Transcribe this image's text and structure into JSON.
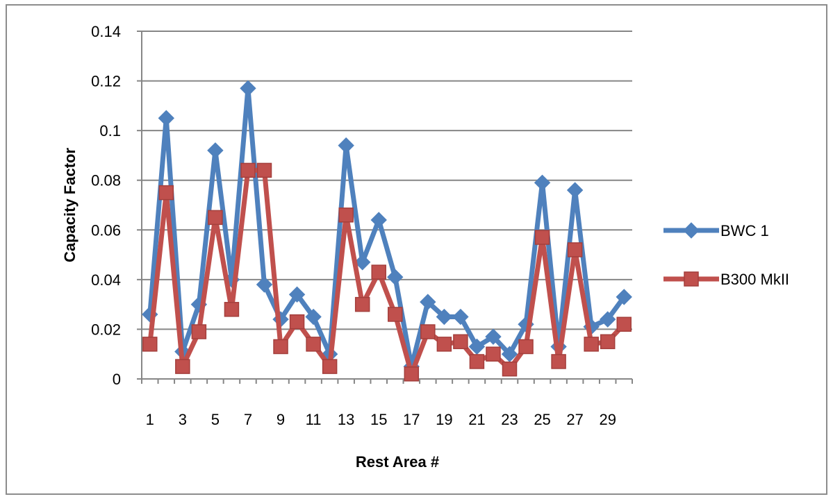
{
  "chart_data": {
    "type": "line",
    "title": "",
    "xlabel": "Rest Area #",
    "ylabel": "Capacity Factor",
    "ylim": [
      0,
      0.14
    ],
    "yticks": [
      "0",
      "0.02",
      "0.04",
      "0.06",
      "0.08",
      "0.1",
      "0.12",
      "0.14"
    ],
    "xticks": [
      "1",
      "3",
      "5",
      "7",
      "9",
      "11",
      "13",
      "15",
      "17",
      "19",
      "21",
      "23",
      "25",
      "27",
      "29"
    ],
    "x": [
      1,
      2,
      3,
      4,
      5,
      6,
      7,
      8,
      9,
      10,
      11,
      12,
      13,
      14,
      15,
      16,
      17,
      18,
      19,
      20,
      21,
      22,
      23,
      24,
      25,
      26,
      27,
      28,
      29,
      30
    ],
    "grid": "horizontal",
    "legend": "right",
    "series": [
      {
        "name": "BWC 1",
        "color": "#4f81bd",
        "marker": "diamond",
        "values": [
          0.026,
          0.105,
          0.011,
          0.03,
          0.092,
          0.04,
          0.117,
          0.038,
          0.024,
          0.034,
          0.025,
          0.01,
          0.094,
          0.047,
          0.064,
          0.041,
          0.005,
          0.031,
          0.025,
          0.025,
          0.013,
          0.017,
          0.01,
          0.022,
          0.079,
          0.013,
          0.076,
          0.021,
          0.024,
          0.033
        ]
      },
      {
        "name": "B300 MkII",
        "color": "#c0504d",
        "marker": "square",
        "values": [
          0.014,
          0.075,
          0.005,
          0.019,
          0.065,
          0.028,
          0.084,
          0.084,
          0.013,
          0.023,
          0.014,
          0.005,
          0.066,
          0.03,
          0.043,
          0.026,
          0.002,
          0.019,
          0.014,
          0.015,
          0.007,
          0.01,
          0.004,
          0.013,
          0.057,
          0.007,
          0.052,
          0.014,
          0.015,
          0.022
        ]
      }
    ]
  }
}
